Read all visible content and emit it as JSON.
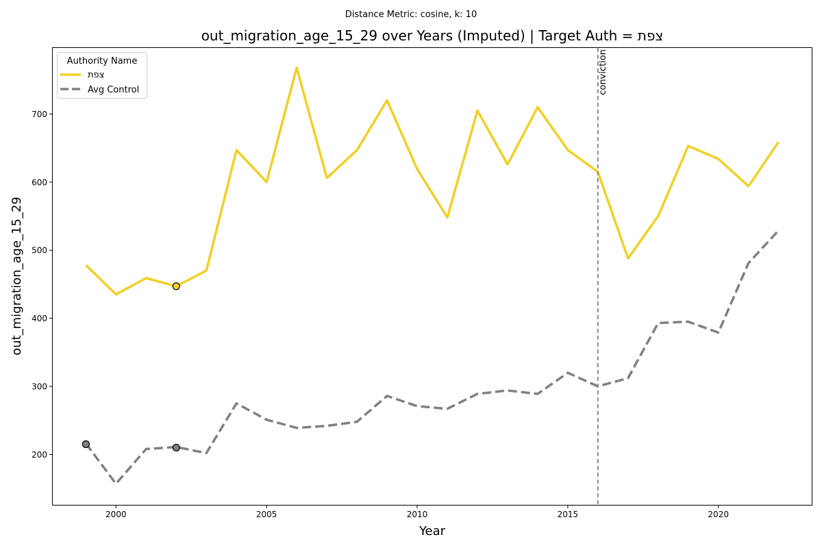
{
  "chart_data": {
    "type": "line",
    "suptitle": "Distance Metric: cosine, k: 10",
    "title": "out_migration_age_15_29 over Years (Imputed) | Target Auth = צפת",
    "xlabel": "Year",
    "ylabel": "out_migration_age_15_29",
    "xlim": [
      1997.9,
      2023.1
    ],
    "ylim": [
      126,
      797
    ],
    "xticks": [
      2000,
      2005,
      2010,
      2015,
      2020
    ],
    "yticks": [
      200,
      300,
      400,
      500,
      600,
      700
    ],
    "grid": false,
    "legend": {
      "title": "Authority Name",
      "placement": "top-left"
    },
    "x": [
      1999,
      2000,
      2001,
      2002,
      2003,
      2004,
      2005,
      2006,
      2007,
      2008,
      2009,
      2010,
      2011,
      2012,
      2013,
      2014,
      2015,
      2016,
      2017,
      2018,
      2019,
      2020,
      2021,
      2022
    ],
    "series": [
      {
        "name": "צפת",
        "style": "solid",
        "color": "#f2d025",
        "values": [
          478,
          435,
          459,
          447,
          470,
          647,
          600,
          768,
          606,
          647,
          720,
          619,
          548,
          705,
          626,
          710,
          647,
          615,
          488,
          550,
          653,
          634,
          594,
          659
        ],
        "imputed_markers": [
          {
            "x": 2002,
            "y": 447
          }
        ]
      },
      {
        "name": "Avg Control",
        "style": "dashed",
        "color": "#808080",
        "values": [
          216,
          157,
          208,
          211,
          202,
          275,
          251,
          239,
          242,
          248,
          286,
          271,
          267,
          289,
          294,
          289,
          320,
          300,
          312,
          393,
          395,
          379,
          481,
          529
        ],
        "imputed_markers": [
          {
            "x": 1999,
            "y": 215
          },
          {
            "x": 2002,
            "y": 210
          }
        ]
      }
    ],
    "annotations": [
      {
        "type": "vline",
        "x": 2016,
        "label": "conviction",
        "style": "dashed",
        "color": "#808080"
      }
    ]
  }
}
